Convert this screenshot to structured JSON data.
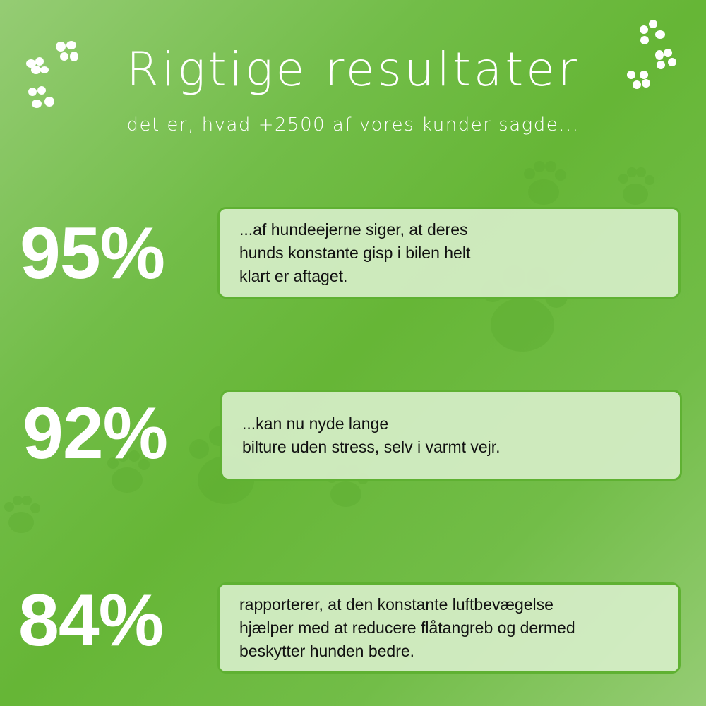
{
  "header": {
    "title": "Rigtige resultater",
    "subtitle": "det er, hvad +2500 af vores kunder sagde..."
  },
  "stats": [
    {
      "percent": "95%",
      "text": "...af hundeejerne siger, at deres\nhunds konstante gisp i bilen helt\nklart er aftaget."
    },
    {
      "percent": "92%",
      "text": "...kan nu nyde lange\nbilture uden stress, selv i varmt vejr."
    },
    {
      "percent": "84%",
      "text": "rapporterer, at den konstante luftbevægelse\nhjælper med at reducere flåtangreb og dermed\nbeskytter hunden bedre."
    }
  ],
  "colors": {
    "background": "#6ab83e",
    "box_fill": "#d6eec8",
    "box_border": "#5fb132",
    "text": "#111111"
  },
  "icons": [
    "paw-print-icon"
  ]
}
